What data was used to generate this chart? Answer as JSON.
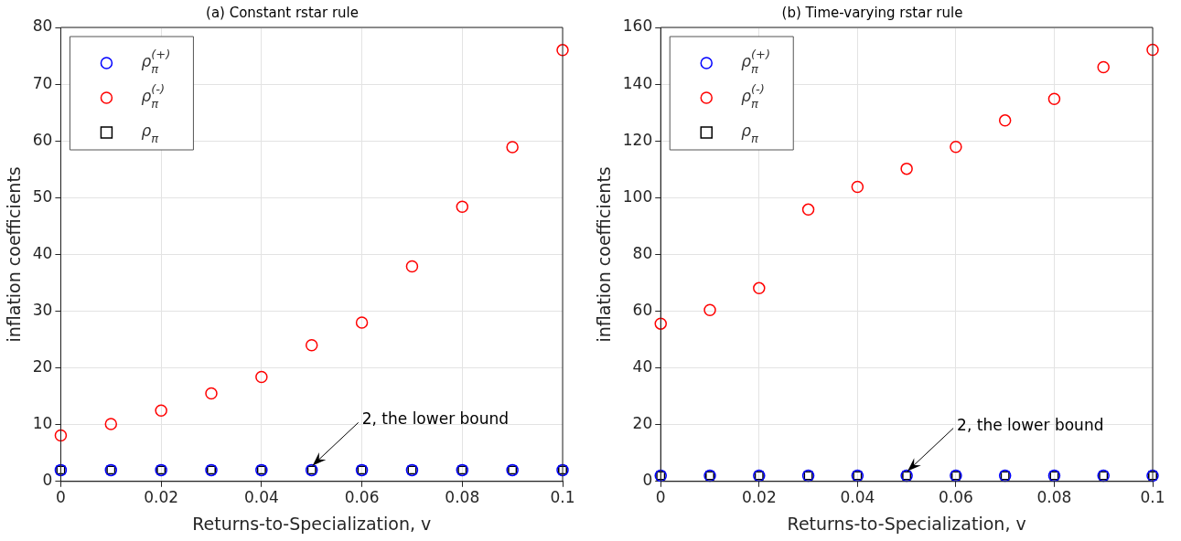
{
  "chart_data": [
    {
      "type": "scatter",
      "title": "(a) Constant rstar rule",
      "xlabel": "Returns-to-Specialization, v",
      "ylabel": "inflation coefficients",
      "x": [
        0,
        0.01,
        0.02,
        0.03,
        0.04,
        0.05,
        0.06,
        0.07,
        0.08,
        0.09,
        0.1
      ],
      "series": [
        {
          "name": "ρ$_{π}$$^{(+)}$",
          "color": "#0000ff",
          "marker": "circle",
          "values": [
            2,
            2,
            2,
            2,
            2,
            2,
            2,
            2,
            2,
            2,
            2
          ]
        },
        {
          "name": "ρ$_{π}$$^{(-)}$",
          "color": "#ff0000",
          "marker": "circle",
          "values": [
            8.1,
            10.1,
            12.5,
            15.5,
            18.4,
            24.0,
            28.0,
            37.9,
            48.4,
            58.9,
            76.0
          ]
        },
        {
          "name": "ρ$_{π}$",
          "color": "#000000",
          "marker": "square",
          "values": [
            2,
            2,
            2,
            2,
            2,
            2,
            2,
            2,
            2,
            2,
            2
          ]
        }
      ],
      "xlim": [
        0,
        0.1
      ],
      "xticks": [
        0,
        0.02,
        0.04,
        0.06,
        0.08,
        0.1
      ],
      "ylim": [
        0,
        80
      ],
      "yticks": [
        0,
        10,
        20,
        30,
        40,
        50,
        60,
        70,
        80
      ],
      "grid": true,
      "legend": "top left",
      "annotations": [
        {
          "text": "2, the lower bound",
          "x": 0.05,
          "y": 2
        }
      ]
    },
    {
      "type": "scatter",
      "title": "(b) Time-varying rstar rule",
      "xlabel": "Returns-to-Specialization, v",
      "ylabel": "inflation coefficients",
      "x": [
        0,
        0.01,
        0.02,
        0.03,
        0.04,
        0.05,
        0.06,
        0.07,
        0.08,
        0.09,
        0.1
      ],
      "series": [
        {
          "name": "ρ$_{π}$$^{(+)}$",
          "color": "#0000ff",
          "marker": "circle",
          "values": [
            2,
            2,
            2,
            2,
            2,
            2,
            2,
            2,
            2,
            2,
            2
          ]
        },
        {
          "name": "ρ$_{π}$$^{(-)}$",
          "color": "#ff0000",
          "marker": "circle",
          "values": [
            55.6,
            60.4,
            68.1,
            95.8,
            103.8,
            110.2,
            117.9,
            127.2,
            134.8,
            146.0,
            152.1
          ]
        },
        {
          "name": "ρ$_{π}$",
          "color": "#000000",
          "marker": "square",
          "values": [
            2,
            2,
            2,
            2,
            2,
            2,
            2,
            2,
            2,
            2,
            2
          ]
        }
      ],
      "xlim": [
        0,
        0.1
      ],
      "xticks": [
        0,
        0.02,
        0.04,
        0.06,
        0.08,
        0.1
      ],
      "ylim": [
        0,
        160
      ],
      "yticks": [
        0,
        20,
        40,
        60,
        80,
        100,
        120,
        140,
        160
      ],
      "grid": true,
      "legend": "top left",
      "annotations": [
        {
          "text": "2, the lower bound",
          "x": 0.05,
          "y": 2
        }
      ]
    }
  ]
}
